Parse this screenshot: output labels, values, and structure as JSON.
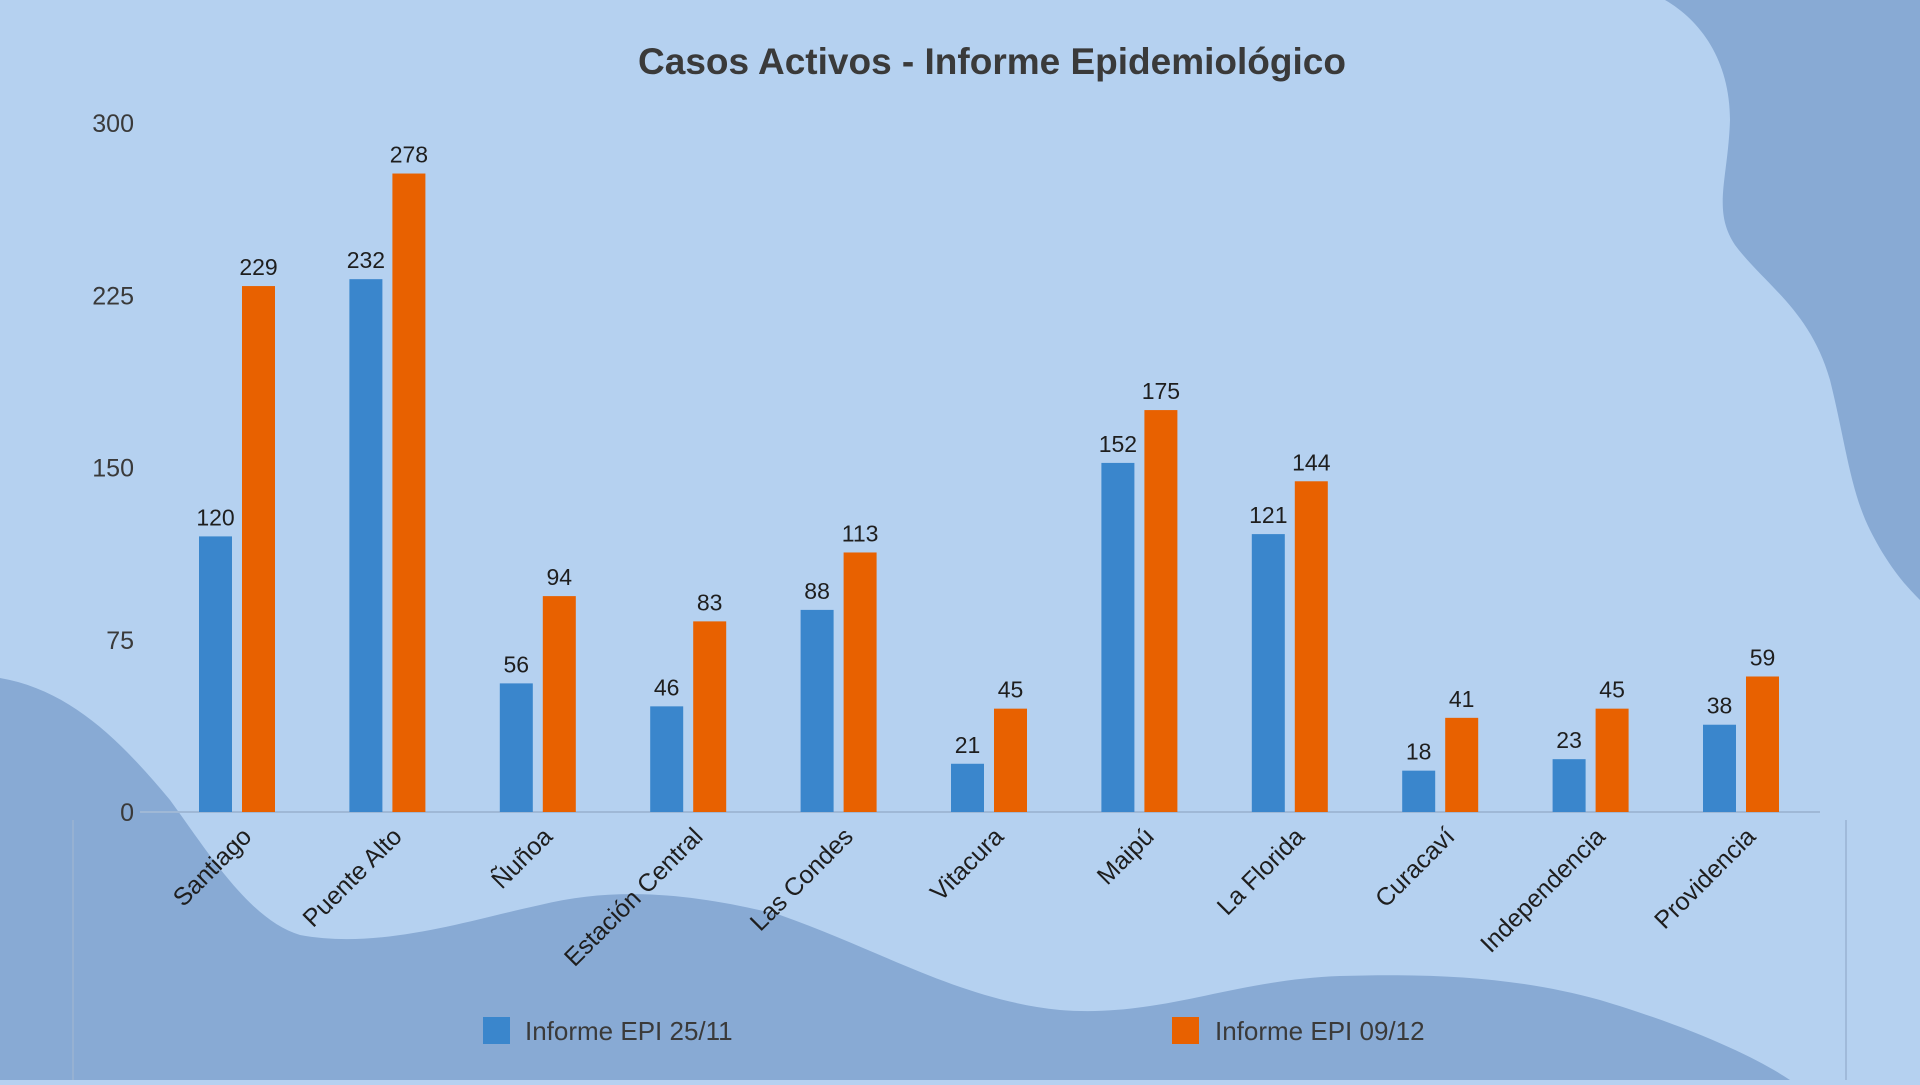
{
  "chart_data": {
    "type": "bar",
    "title": "Casos Activos - Informe Epidemiológico",
    "categories": [
      "Santiago",
      "Puente Alto",
      "Ñuñoa",
      "Estación Central",
      "Las Condes",
      "Vitacura",
      "Maipú",
      "La Florida",
      "Curacaví",
      "Independencia",
      "Providencia"
    ],
    "series": [
      {
        "name": "Informe EPI 25/11",
        "color": "#3a86cc",
        "values": [
          120,
          232,
          56,
          46,
          88,
          21,
          152,
          121,
          18,
          23,
          38
        ]
      },
      {
        "name": "Informe EPI 09/12",
        "color": "#e86100",
        "values": [
          229,
          278,
          94,
          83,
          113,
          45,
          175,
          144,
          41,
          45,
          59
        ]
      }
    ],
    "ylim": [
      0,
      300
    ],
    "yticks": [
      "0",
      "75",
      "150",
      "225",
      "300"
    ],
    "xlabel": "",
    "ylabel": "",
    "grid": false,
    "legend_position": "bottom",
    "background_color": "#b5d1f0",
    "wave_color": "#88aad4"
  }
}
